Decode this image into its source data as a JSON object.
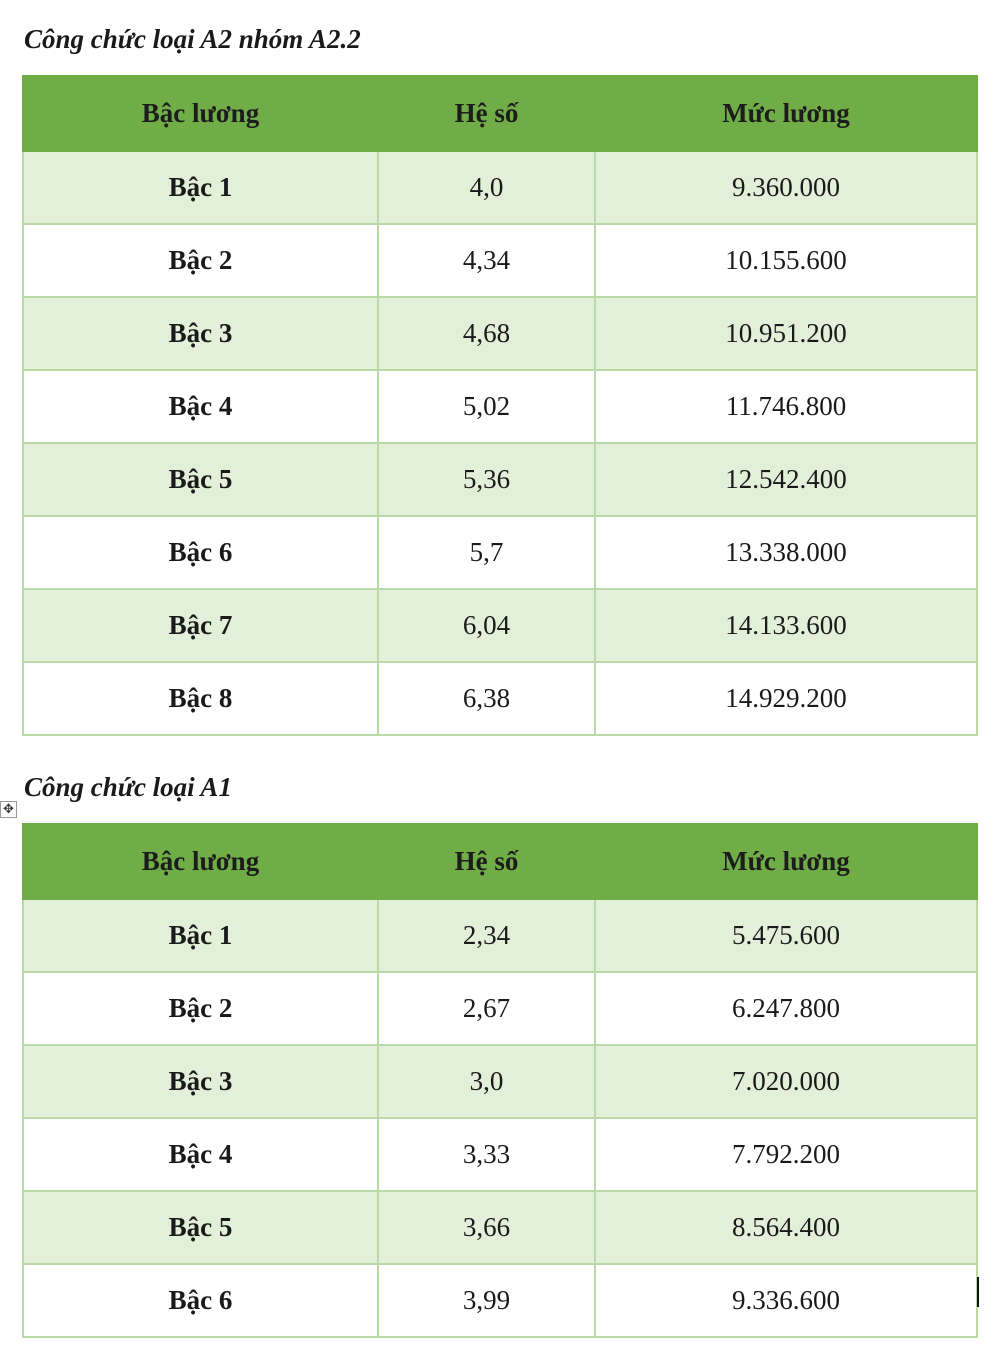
{
  "tables": [
    {
      "title": "Công chức loại A2 nhóm A2.2",
      "headers": [
        "Bậc lương",
        "Hệ số",
        "Mức lương"
      ],
      "rows": [
        [
          "Bậc 1",
          "4,0",
          "9.360.000"
        ],
        [
          "Bậc 2",
          "4,34",
          "10.155.600"
        ],
        [
          "Bậc 3",
          "4,68",
          "10.951.200"
        ],
        [
          "Bậc 4",
          "5,02",
          "11.746.800"
        ],
        [
          "Bậc 5",
          "5,36",
          "12.542.400"
        ],
        [
          "Bậc 6",
          "5,7",
          "13.338.000"
        ],
        [
          "Bậc 7",
          "6,04",
          "14.133.600"
        ],
        [
          "Bậc 8",
          "6,38",
          "14.929.200"
        ]
      ]
    },
    {
      "title": "Công chức loại A1",
      "headers": [
        "Bậc lương",
        "Hệ số",
        "Mức lương"
      ],
      "rows": [
        [
          "Bậc 1",
          "2,34",
          "5.475.600"
        ],
        [
          "Bậc 2",
          "2,67",
          "6.247.800"
        ],
        [
          "Bậc 3",
          "3,0",
          "7.020.000"
        ],
        [
          "Bậc 4",
          "3,33",
          "7.792.200"
        ],
        [
          "Bậc 5",
          "3,66",
          "8.564.400"
        ],
        [
          "Bậc 6",
          "3,99",
          "9.336.600"
        ]
      ]
    }
  ],
  "colors": {
    "header_bg": "#70ad47",
    "band_bg": "#e2efd9",
    "border": "#b9d9a6"
  },
  "icons": {
    "table_move_handle": "move-arrows-icon"
  }
}
